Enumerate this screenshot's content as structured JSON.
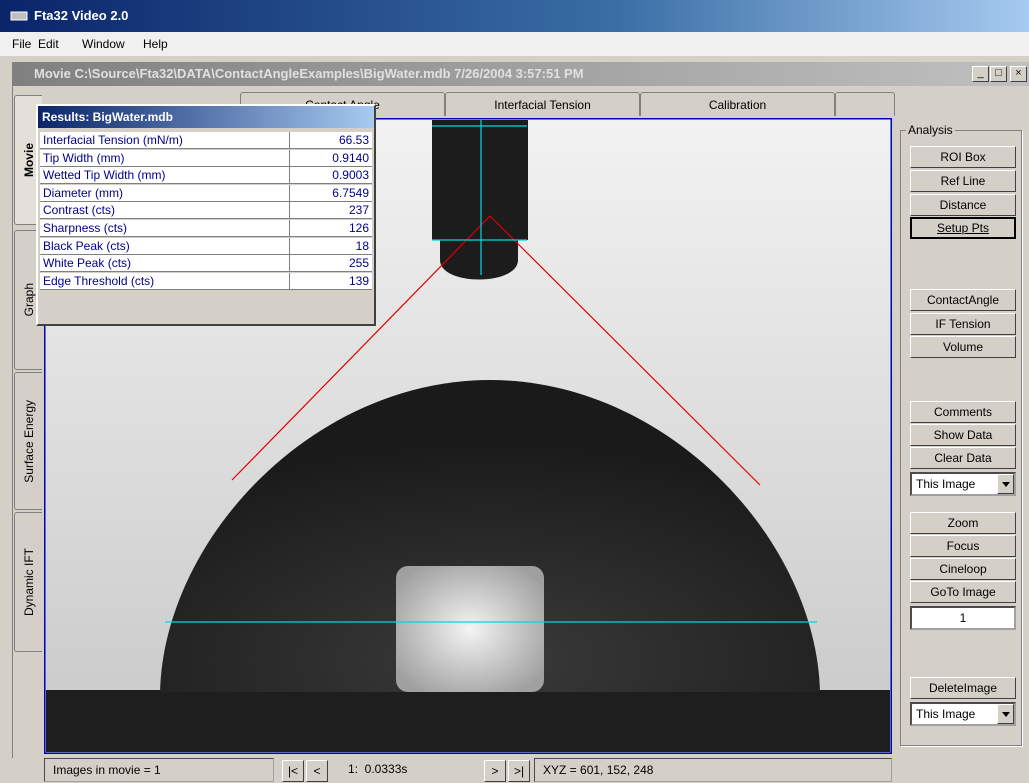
{
  "window": {
    "title": "Fta32 Video 2.0",
    "menu": [
      "File",
      "Edit",
      "Window",
      "Help"
    ]
  },
  "movie_window": {
    "title": "Movie C:\\Source\\Fta32\\DATA\\ContactAngleExamples\\BigWater.mdb 7/26/2004 3:57:51 PM",
    "tabs": [
      "Contact Angle",
      "Interfacial Tension",
      "Calibration"
    ],
    "side_tabs": [
      "Movie",
      "Graph",
      "Surface Energy",
      "Dynamic IFT"
    ]
  },
  "results": {
    "title": "Results: BigWater.mdb",
    "rows": [
      [
        "Interfacial Tension (mN/m)",
        "66.53"
      ],
      [
        "Tip Width (mm)",
        "0.9140"
      ],
      [
        "Wetted Tip Width (mm)",
        "0.9003"
      ],
      [
        "Diameter (mm)",
        "6.7549"
      ],
      [
        "Contrast (cts)",
        "237"
      ],
      [
        "Sharpness (cts)",
        "126"
      ],
      [
        "Black Peak (cts)",
        "18"
      ],
      [
        "White Peak (cts)",
        "255"
      ],
      [
        "Edge Threshold (cts)",
        "139"
      ]
    ]
  },
  "analysis": {
    "title": "Analysis",
    "buttons": [
      "ROI Box",
      "Ref Line",
      "Distance",
      "Setup Pts",
      "ContactAngle",
      "IF Tension",
      "Volume",
      "Comments",
      "Show Data",
      "Clear Data"
    ],
    "scope_1": "This Image",
    "buttons_2": [
      "Zoom",
      "Focus",
      "Cineloop",
      "GoTo Image"
    ],
    "image_number": "1",
    "delete_button": "DeleteImage",
    "scope_2": "This Image"
  },
  "status": {
    "images": "Images in movie = 1",
    "nav_first": "|<",
    "nav_prev": "<",
    "time": "1:  0.0333s",
    "nav_next": ">",
    "nav_last": ">|",
    "xyz": "XYZ = 601, 152, 248"
  }
}
